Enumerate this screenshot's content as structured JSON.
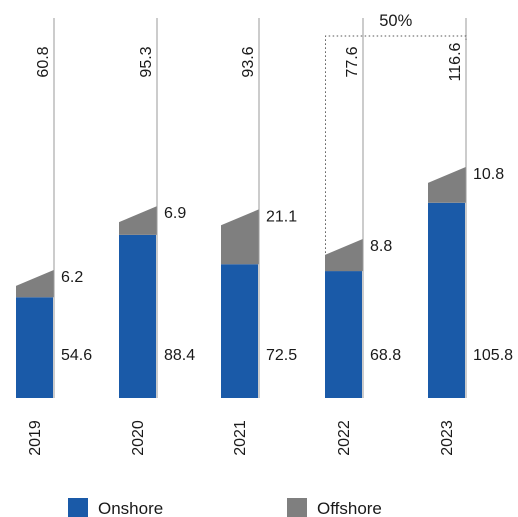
{
  "chart_data": {
    "type": "bar",
    "stacked": true,
    "categories": [
      "2019",
      "2020",
      "2021",
      "2022",
      "2023"
    ],
    "series": [
      {
        "name": "Onshore",
        "color": "#1a5aa8",
        "values": [
          54.6,
          88.4,
          72.5,
          68.8,
          105.8
        ]
      },
      {
        "name": "Offshore",
        "color": "#7f7f7f",
        "values": [
          6.2,
          6.9,
          21.1,
          8.8,
          10.8
        ]
      }
    ],
    "totals": [
      60.8,
      95.3,
      93.6,
      77.6,
      116.6
    ],
    "annotation": {
      "text": "50%",
      "from": "2022",
      "to": "2023"
    },
    "legend": {
      "position": "bottom"
    },
    "ylim": [
      0,
      120
    ],
    "grid": false
  }
}
